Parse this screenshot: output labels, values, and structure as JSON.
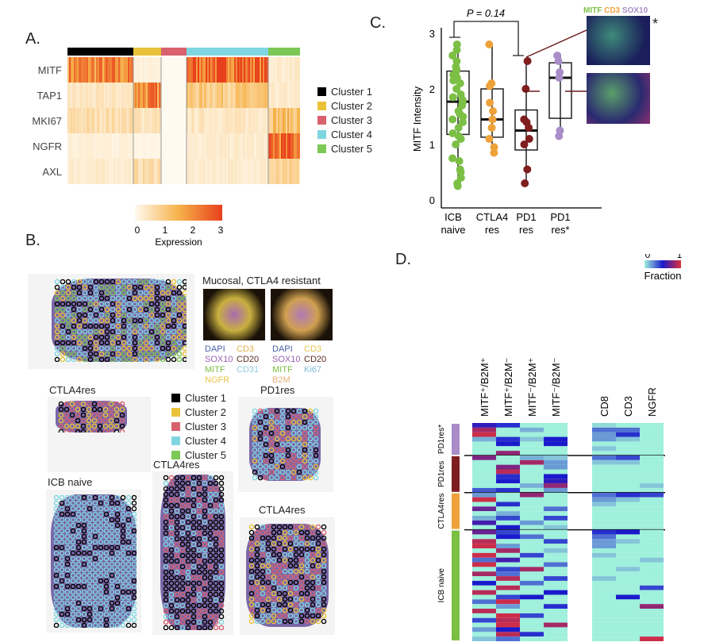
{
  "panels": {
    "a": "A.",
    "b": "B.",
    "c": "C.",
    "d": "D."
  },
  "clusters": [
    {
      "name": "Cluster 1",
      "color": "#000000"
    },
    {
      "name": "Cluster 2",
      "color": "#e9c23a"
    },
    {
      "name": "Cluster 3",
      "color": "#d9616f"
    },
    {
      "name": "Cluster 4",
      "color": "#7fd6e0"
    },
    {
      "name": "Cluster 5",
      "color": "#7cc855"
    }
  ],
  "chart_data": [
    {
      "type": "heatmap",
      "panel": "A",
      "rows": [
        "MITF",
        "TAP1",
        "MKI67",
        "NGFR",
        "AXL"
      ],
      "columns": [
        "Cluster 1",
        "Cluster 2",
        "Cluster 3",
        "Cluster 4",
        "Cluster 5"
      ],
      "values": [
        [
          2.0,
          0.2,
          0,
          2.6,
          0.3
        ],
        [
          0.4,
          2.0,
          0,
          1.0,
          0.3
        ],
        [
          0.6,
          0.5,
          0,
          0.4,
          1.2
        ],
        [
          0.2,
          0.1,
          0,
          0.3,
          2.4
        ],
        [
          0.3,
          0.6,
          0,
          0.3,
          0.7
        ]
      ],
      "colorbar": {
        "label": "Expression",
        "ticks": [
          0,
          1,
          2,
          3
        ],
        "colors": [
          "#fffaf0",
          "#f7b24a",
          "#e8401c"
        ]
      }
    },
    {
      "type": "scatter",
      "panel": "C",
      "ylabel": "MITF Intensity",
      "ylim": [
        0,
        3
      ],
      "yticks": [
        0,
        1,
        2,
        3
      ],
      "categories": [
        "ICB\nnaive",
        "CTLA4\nres",
        "PD1\nres",
        "PD1\nres*"
      ],
      "category_lines": [
        [
          "ICB",
          "naive"
        ],
        [
          "CTLA4",
          "res"
        ],
        [
          "PD1",
          "res"
        ],
        [
          "PD1",
          "res*"
        ]
      ],
      "colors": [
        "#7bbf45",
        "#eea23a",
        "#7f1e1e",
        "#a98cc8"
      ],
      "points": [
        [
          0.25,
          0.3,
          0.4,
          0.5,
          0.55,
          0.7,
          0.75,
          1.0,
          1.1,
          1.15,
          1.2,
          1.3,
          1.4,
          1.45,
          1.5,
          1.55,
          1.6,
          1.7,
          1.75,
          1.8,
          1.85,
          1.9,
          2.0,
          2.1,
          2.15,
          2.2,
          2.25,
          2.3,
          2.35,
          2.4,
          2.5,
          2.6,
          2.7,
          2.8
        ],
        [
          0.85,
          0.95,
          1.1,
          1.3,
          1.45,
          1.6,
          1.75,
          2.05,
          2.1,
          2.8
        ],
        [
          0.3,
          0.55,
          1.0,
          1.1,
          1.3,
          1.4,
          1.45,
          2.0,
          2.5
        ],
        [
          1.15,
          1.25,
          2.2,
          2.3,
          2.5,
          2.6
        ]
      ],
      "boxes": [
        {
          "q1": 1.18,
          "median": 1.77,
          "q3": 2.32,
          "min": 0.2,
          "max": 2.85
        },
        {
          "q1": 1.13,
          "median": 1.45,
          "q3": 2.0,
          "min": 0.85,
          "max": 2.8
        },
        {
          "q1": 0.9,
          "median": 1.25,
          "q3": 1.62,
          "min": 0.3,
          "max": 2.5
        },
        {
          "q1": 1.47,
          "median": 2.2,
          "q3": 2.47,
          "min": 1.15,
          "max": 2.63
        }
      ],
      "annotation": "P = 0.14",
      "inset_labels": [
        "MITF",
        "CD3",
        "SOX10"
      ],
      "inset_colors": [
        "#7bbf45",
        "#eea23a",
        "#a98cc8"
      ],
      "inset_star": "*"
    },
    {
      "type": "heatmap",
      "panel": "D",
      "columns": [
        "MITF⁺/B2M⁺",
        "MITF⁺/B2M⁻",
        "MITF⁻/B2M⁺",
        "MITF⁻/B2M⁻",
        "CD8",
        "CD3",
        "NGFR"
      ],
      "colorbar": {
        "label": "Fraction",
        "ticks": [
          0,
          1
        ],
        "colors": [
          "#9ff0dc",
          "#1a1acc",
          "#e0303a"
        ]
      },
      "groups": [
        {
          "name": "PD1res*",
          "color": "#a98cc8",
          "rows": [
            [
              0.55,
              0.45,
              0,
              0,
              0.05,
              0,
              0
            ],
            [
              0.85,
              0,
              0.15,
              0,
              0.3,
              0.3,
              0
            ],
            [
              0.95,
              0,
              0,
              0,
              0.2,
              0.45,
              0
            ],
            [
              0.15,
              0.45,
              0.1,
              0.5,
              0.2,
              0.1,
              0
            ],
            [
              0,
              0.5,
              0,
              0.5,
              0,
              0,
              0
            ],
            [
              0,
              0,
              0,
              0,
              0.1,
              0,
              0
            ],
            [
              0,
              0.8,
              0,
              0,
              0,
              0,
              0
            ]
          ]
        },
        {
          "name": "PD1res",
          "color": "#7f1e1e",
          "rows": [
            [
              0.75,
              0,
              0.15,
              0.1,
              0.3,
              0.4,
              0
            ],
            [
              0,
              0,
              0.85,
              0.2,
              0.1,
              0.1,
              0
            ],
            [
              0,
              0.75,
              0,
              0.2,
              0,
              0,
              0
            ],
            [
              0,
              0.9,
              0,
              0,
              0,
              0,
              0
            ],
            [
              0,
              0.45,
              0,
              0.5,
              0,
              0,
              0
            ],
            [
              0,
              0.5,
              0,
              0.55,
              0,
              0,
              0
            ],
            [
              0,
              0,
              0.15,
              0.8,
              0,
              0,
              0.1
            ],
            [
              0.35,
              0.45,
              0,
              0.2,
              0,
              0,
              0
            ]
          ]
        },
        {
          "name": "CTLA4res",
          "color": "#eea23a",
          "rows": [
            [
              0.2,
              0,
              0.8,
              0,
              0.3,
              0.45,
              0.4
            ],
            [
              0.95,
              0,
              0,
              0,
              0.2,
              0.1,
              0
            ],
            [
              0,
              0.45,
              0,
              0,
              0.1,
              0,
              0
            ],
            [
              0.7,
              0,
              0,
              0.3,
              0,
              0,
              0
            ],
            [
              0,
              0.15,
              0,
              0,
              0,
              0,
              0
            ],
            [
              0.15,
              0.4,
              0,
              0.4,
              0,
              0,
              0
            ],
            [
              0.6,
              0,
              0.2,
              0,
              0,
              0,
              0
            ],
            [
              0,
              0.5,
              0,
              0.1,
              0,
              0,
              0
            ]
          ]
        },
        {
          "name": "ICB naive",
          "color": "#7bbf45",
          "rows": [
            [
              0.7,
              0.4,
              0,
              0,
              0.45,
              0.5,
              0
            ],
            [
              0,
              0.5,
              0.3,
              0,
              0.3,
              0,
              0
            ],
            [
              0.9,
              0,
              0,
              0.4,
              0.2,
              0.1,
              0
            ],
            [
              0.95,
              0.2,
              0,
              0,
              0.2,
              0,
              0
            ],
            [
              0,
              0.85,
              0,
              0.1,
              0,
              0,
              0
            ],
            [
              0.95,
              0,
              0.4,
              0,
              0.1,
              0,
              0
            ],
            [
              0.3,
              0.6,
              0,
              0,
              0,
              0,
              0.1
            ],
            [
              0.95,
              0,
              0,
              0.3,
              0,
              0,
              0
            ],
            [
              0,
              0.4,
              0.85,
              0,
              0,
              0.1,
              0
            ],
            [
              0.85,
              0.3,
              0,
              0,
              0,
              0,
              0
            ],
            [
              0,
              0.9,
              0,
              0.4,
              0.1,
              0,
              0
            ],
            [
              0.5,
              0,
              0.3,
              0,
              0,
              0,
              0
            ],
            [
              0,
              0.9,
              0,
              0,
              0,
              0,
              0.4
            ],
            [
              0.9,
              0,
              0,
              0.5,
              0,
              0,
              0
            ],
            [
              0,
              0.4,
              0.5,
              0,
              0,
              0.5,
              0
            ],
            [
              0.3,
              0.95,
              0,
              0,
              0,
              0,
              0
            ],
            [
              0,
              0.2,
              0,
              0.45,
              0,
              0,
              0.8
            ],
            [
              0.9,
              0,
              0,
              0,
              0,
              0,
              0
            ],
            [
              0,
              0.95,
              0.4,
              0,
              0,
              0,
              0
            ],
            [
              0.4,
              0.9,
              0,
              0,
              0,
              0,
              0
            ],
            [
              0,
              0.95,
              0,
              0.85,
              0,
              0,
              0
            ],
            [
              0.2,
              0.5,
              0,
              0,
              0,
              0,
              0
            ],
            [
              0,
              0.9,
              0.45,
              0,
              0,
              0,
              0
            ],
            [
              0.1,
              0.3,
              0,
              0,
              0,
              0,
              0.95
            ]
          ]
        }
      ]
    }
  ],
  "panel_b": {
    "if_title": "Mucosal, CTLA4 resistant",
    "if_markers_left": [
      {
        "t": "DAPI",
        "c": "#4a5fa8"
      },
      {
        "t": "CD3",
        "c": "#e0b04a"
      },
      {
        "t": "SOX10",
        "c": "#9a5fb0"
      },
      {
        "t": "CD20",
        "c": "#5a2a20"
      },
      {
        "t": "MITF",
        "c": "#7bbf45"
      },
      {
        "t": "CD31",
        "c": "#8ecfe0"
      },
      {
        "t": "NGFR",
        "c": "#e8c44a"
      },
      {
        "t": "",
        "c": "#000"
      }
    ],
    "if_markers_right": [
      {
        "t": "DAPI",
        "c": "#4a5fa8"
      },
      {
        "t": "CD3",
        "c": "#e8c44a"
      },
      {
        "t": "SOX10",
        "c": "#9a5fb0"
      },
      {
        "t": "CD20",
        "c": "#5a2a20"
      },
      {
        "t": "MITF",
        "c": "#7bbf45"
      },
      {
        "t": "Ki67",
        "c": "#7fb8d8"
      },
      {
        "t": "B2M",
        "c": "#e8b07a"
      },
      {
        "t": "",
        "c": "#000"
      }
    ],
    "sections": [
      "CTLA4res",
      "ICB naive",
      "CTLA4res",
      "PD1res",
      "CTLA4res"
    ]
  }
}
